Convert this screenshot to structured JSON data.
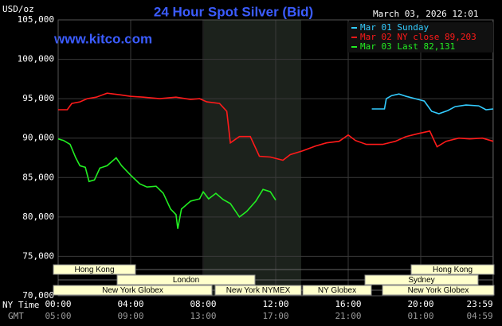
{
  "chart_data": {
    "type": "line",
    "title": "24 Hour Spot Silver (Bid)",
    "y_label": "USD/oz",
    "site": "www.kitco.com",
    "timestamp": "March 03, 2026 12:01",
    "x_row_label": "NY Time",
    "gmt_row_label": "GMT",
    "xlim": [
      0,
      24
    ],
    "ylim": [
      70000,
      105000
    ],
    "xticks": [
      {
        "value": 0,
        "label": "00:00"
      },
      {
        "value": 4,
        "label": "04:00"
      },
      {
        "value": 8,
        "label": "08:00"
      },
      {
        "value": 12,
        "label": "12:00"
      },
      {
        "value": 16,
        "label": "16:00"
      },
      {
        "value": 20,
        "label": "20:00"
      },
      {
        "value": 23.983,
        "label": "23:59"
      }
    ],
    "gmt_labels": [
      "05:00",
      "09:00",
      "13:00",
      "17:00",
      "21:00",
      "01:00",
      "04:59"
    ],
    "yticks": [
      {
        "value": 70000,
        "label": "70,000"
      },
      {
        "value": 75000,
        "label": "75,000"
      },
      {
        "value": 80000,
        "label": "80,000"
      },
      {
        "value": 85000,
        "label": "85,000"
      },
      {
        "value": 90000,
        "label": "90,000"
      },
      {
        "value": 95000,
        "label": "95,000"
      },
      {
        "value": 100000,
        "label": "100,000"
      },
      {
        "value": 105000,
        "label": "105,000"
      }
    ],
    "grid": true,
    "sessions": [
      "Hong Kong",
      "London",
      "New York Globex",
      "New York NYMEX",
      "NY Globex",
      "Hong Kong",
      "Sydney",
      "New York Globex"
    ],
    "series": [
      {
        "name": "Mar 01 Sunday",
        "color": "#33ccff",
        "x": [
          17.3,
          18.0,
          18.1,
          18.4,
          18.8,
          19.2,
          19.7,
          20.2,
          20.6,
          21.0,
          21.5,
          21.9,
          22.5,
          23.2,
          23.6,
          24.0
        ],
        "values": [
          93700,
          93700,
          95000,
          95400,
          95600,
          95300,
          95000,
          94700,
          93400,
          93100,
          93500,
          94000,
          94200,
          94100,
          93600,
          93700
        ]
      },
      {
        "name": "Mar 02 NY close 89,203",
        "color": "#ff1a1a",
        "x": [
          0,
          0.5,
          0.75,
          1.2,
          1.6,
          2.1,
          2.7,
          3.4,
          4.0,
          4.7,
          5.6,
          6.5,
          7.3,
          7.8,
          8.2,
          8.9,
          9.3,
          9.5,
          10.0,
          10.6,
          11.1,
          11.7,
          12.4,
          12.8,
          13.5,
          14.2,
          14.8,
          15.5,
          16.0,
          16.4,
          17.0,
          17.9,
          18.6,
          19.2,
          19.9,
          20.5,
          20.9,
          21.4,
          22.1,
          22.7,
          23.4,
          24.0
        ],
        "values": [
          93600,
          93600,
          94400,
          94600,
          95000,
          95200,
          95700,
          95500,
          95300,
          95200,
          95000,
          95200,
          94900,
          95000,
          94600,
          94400,
          93400,
          89400,
          90200,
          90200,
          87700,
          87600,
          87200,
          87900,
          88400,
          89000,
          89400,
          89600,
          90400,
          89700,
          89203,
          89200,
          89600,
          90200,
          90600,
          90900,
          88900,
          89600,
          90000,
          89900,
          90000,
          89600
        ]
      },
      {
        "name": "Mar 03 Last 82,131",
        "color": "#22ee22",
        "x": [
          0,
          0.3,
          0.66,
          0.97,
          1.2,
          1.5,
          1.7,
          2.0,
          2.3,
          2.7,
          3.2,
          3.5,
          4.0,
          4.5,
          4.9,
          5.4,
          5.8,
          6.2,
          6.5,
          6.6,
          6.8,
          7.3,
          7.8,
          8.0,
          8.3,
          8.7,
          9.1,
          9.5,
          10.0,
          10.4,
          10.9,
          11.3,
          11.7,
          12.0
        ],
        "values": [
          89900,
          89700,
          89200,
          87500,
          86500,
          86300,
          84500,
          84700,
          86200,
          86500,
          87500,
          86500,
          85300,
          84200,
          83800,
          83900,
          83000,
          81000,
          80300,
          78500,
          81000,
          82000,
          82300,
          83200,
          82300,
          83000,
          82200,
          81700,
          80000,
          80700,
          82000,
          83500,
          83200,
          82131
        ]
      }
    ]
  }
}
